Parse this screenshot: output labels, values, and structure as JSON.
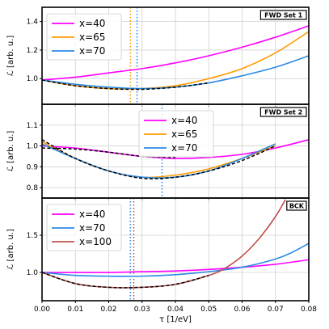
{
  "chart_data": {
    "type": "line",
    "xlabel": "τ [1/eV]",
    "xlim": [
      0.0,
      0.08
    ],
    "xticks": [
      "0.00",
      "0.01",
      "0.02",
      "0.03",
      "0.04",
      "0.05",
      "0.06",
      "0.07",
      "0.08"
    ],
    "grid": true,
    "panels": [
      {
        "tag": "FWD Set 1",
        "ylabel": "ℒ [arb. u.]",
        "ylim": [
          0.82,
          1.5
        ],
        "yticks": [
          "1.0",
          "1.2",
          "1.4"
        ],
        "legend_position": "top-left",
        "series": [
          {
            "name": "x=40",
            "color": "#ff00ff",
            "x": [
              0,
              0.01,
              0.02,
              0.03,
              0.04,
              0.05,
              0.06,
              0.07,
              0.08
            ],
            "y": [
              0.99,
              1.01,
              1.04,
              1.07,
              1.11,
              1.16,
              1.22,
              1.29,
              1.37
            ]
          },
          {
            "name": "x=65",
            "color": "#ff9900",
            "x": [
              0,
              0.01,
              0.02,
              0.03,
              0.04,
              0.05,
              0.06,
              0.07,
              0.08
            ],
            "y": [
              0.99,
              0.95,
              0.93,
              0.93,
              0.95,
              1.0,
              1.07,
              1.18,
              1.33
            ]
          },
          {
            "name": "x=70",
            "color": "#2b8ae6",
            "x": [
              0,
              0.01,
              0.02,
              0.03,
              0.04,
              0.05,
              0.06,
              0.07,
              0.08
            ],
            "y": [
              0.99,
              0.96,
              0.94,
              0.93,
              0.94,
              0.97,
              1.02,
              1.08,
              1.16
            ]
          },
          {
            "name": "",
            "color": "#000000",
            "dashed": true,
            "x": [
              0,
              0.01,
              0.02,
              0.03,
              0.04,
              0.05
            ],
            "y": [
              0.99,
              0.95,
              0.93,
              0.925,
              0.94,
              0.97
            ]
          }
        ],
        "vlines": [
          {
            "x": 0.0265,
            "color": "#ff9900"
          },
          {
            "x": 0.0285,
            "color": "#2b8ae6"
          }
        ]
      },
      {
        "tag": "FWD Set 2",
        "ylabel": "ℒ [arb. u.]",
        "ylim": [
          0.75,
          1.2
        ],
        "yticks": [
          "0.8",
          "0.9",
          "1.0",
          "1.1"
        ],
        "legend_position": "top-center",
        "series": [
          {
            "name": "x=40",
            "color": "#ff00ff",
            "x": [
              0,
              0.01,
              0.02,
              0.03,
              0.04,
              0.05,
              0.06,
              0.07,
              0.08
            ],
            "y": [
              1.0,
              0.99,
              0.97,
              0.95,
              0.94,
              0.945,
              0.96,
              0.99,
              1.03
            ]
          },
          {
            "name": "x=65",
            "color": "#ff9900",
            "x": [
              0,
              0.01,
              0.02,
              0.03,
              0.04,
              0.05,
              0.06,
              0.07
            ],
            "y": [
              1.02,
              0.94,
              0.88,
              0.85,
              0.86,
              0.89,
              0.94,
              1.0
            ]
          },
          {
            "name": "x=70",
            "color": "#2b8ae6",
            "x": [
              0,
              0.01,
              0.02,
              0.03,
              0.04,
              0.05,
              0.06,
              0.07
            ],
            "y": [
              1.01,
              0.94,
              0.88,
              0.85,
              0.85,
              0.88,
              0.94,
              1.01
            ]
          },
          {
            "name": "",
            "color": "#000000",
            "dashed": true,
            "x": [
              0,
              0.01,
              0.02,
              0.03,
              0.04,
              0.05,
              0.06,
              0.07
            ],
            "y": [
              1.03,
              0.94,
              0.88,
              0.845,
              0.85,
              0.88,
              0.93,
              1.0
            ]
          },
          {
            "name": "",
            "color": "#000000",
            "dashed": true,
            "x": [
              0,
              0.01,
              0.02,
              0.03,
              0.04
            ],
            "y": [
              0.99,
              0.985,
              0.97,
              0.95,
              0.945
            ]
          }
        ],
        "vlines": [
          {
            "x": 0.036,
            "color": "#2b8ae6"
          }
        ]
      },
      {
        "tag": "BCK",
        "ylabel": "ℒ [arb. u.]",
        "ylim": [
          0.62,
          2.0
        ],
        "yticks": [
          "1.0",
          "1.5"
        ],
        "legend_position": "top-left",
        "series": [
          {
            "name": "x=40",
            "color": "#ff00ff",
            "x": [
              0,
              0.01,
              0.02,
              0.03,
              0.04,
              0.05,
              0.06,
              0.07,
              0.08
            ],
            "y": [
              1.0,
              1.0,
              1.0,
              1.01,
              1.02,
              1.04,
              1.07,
              1.11,
              1.17
            ]
          },
          {
            "name": "x=70",
            "color": "#2b8ae6",
            "x": [
              0,
              0.01,
              0.02,
              0.03,
              0.04,
              0.05,
              0.06,
              0.07,
              0.075,
              0.08
            ],
            "y": [
              1.0,
              0.96,
              0.95,
              0.95,
              0.97,
              1.01,
              1.07,
              1.18,
              1.27,
              1.39
            ]
          },
          {
            "name": "x=100",
            "color": "#c0504d",
            "x": [
              0,
              0.01,
              0.02,
              0.03,
              0.04,
              0.05,
              0.055,
              0.06,
              0.065,
              0.07,
              0.073
            ],
            "y": [
              1.0,
              0.85,
              0.8,
              0.8,
              0.84,
              0.96,
              1.06,
              1.22,
              1.45,
              1.75,
              1.98
            ]
          },
          {
            "name": "",
            "color": "#000000",
            "dashed": true,
            "x": [
              0,
              0.01,
              0.02,
              0.03,
              0.04,
              0.05
            ],
            "y": [
              1.0,
              0.85,
              0.8,
              0.8,
              0.84,
              0.96
            ]
          }
        ],
        "vlines": [
          {
            "x": 0.0265,
            "color": "#2b8ae6"
          },
          {
            "x": 0.0275,
            "color": "#c0504d"
          }
        ]
      }
    ]
  }
}
